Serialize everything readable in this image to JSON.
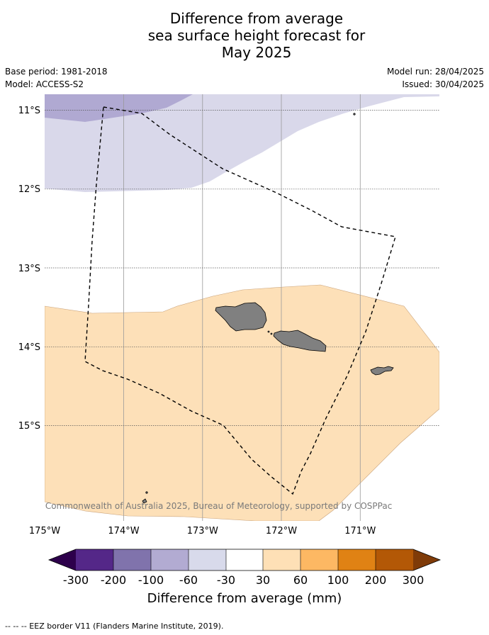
{
  "title": {
    "line1": "Difference from average",
    "line2": "sea surface height forecast for",
    "line3": "May 2025"
  },
  "meta": {
    "base_period": "Base period: 1981-2018",
    "model": "Model: ACCESS-S2",
    "model_run": "Model run: 28/04/2025",
    "issued": "Issued: 30/04/2025"
  },
  "map": {
    "lat_labels": [
      "11°S",
      "12°S",
      "13°S",
      "14°S",
      "15°S"
    ],
    "lon_labels": [
      "175°W",
      "174°W",
      "173°W",
      "172°W",
      "171°W"
    ],
    "copyright": "© Commonwealth of Australia 2025, Bureau of Meteorology, supported by COSPPac",
    "colors": {
      "band_minus100_minus60": "#b0a9d2",
      "band_minus60_minus30": "#d9d8ea",
      "band_30_60": "#fde0b8",
      "land": "#808080",
      "eez_border": "#000000"
    }
  },
  "colorbar": {
    "title": "Difference from average (mm)",
    "ticks": [
      "-300",
      "-200",
      "-100",
      "-60",
      "-30",
      "30",
      "60",
      "100",
      "200",
      "300"
    ],
    "colors": [
      "#2d004b",
      "#542788",
      "#8073ac",
      "#b2abd2",
      "#d8daeb",
      "#ffffff",
      "#fee0b6",
      "#fdb863",
      "#e08214",
      "#b35806",
      "#7f3b08"
    ]
  },
  "footnote": "--  --  -- EEZ border V11 (Flanders Marine Institute, 2019)."
}
